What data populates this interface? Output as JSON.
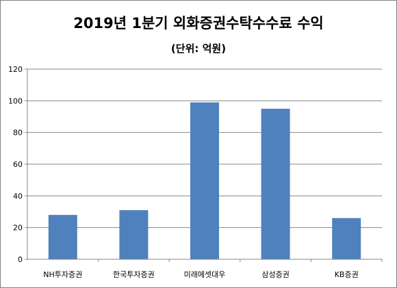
{
  "chart_data": {
    "type": "bar",
    "title": "2019년 1분기 외화증권수탁수수료 수익",
    "subtitle": "(단위: 억원)",
    "categories": [
      "NH투자증권",
      "한국투자증권",
      "미래에셋대우",
      "삼성증권",
      "KB증권"
    ],
    "series": [
      {
        "values": [
          28,
          31,
          99,
          95,
          26
        ]
      }
    ],
    "ylim": [
      0,
      120
    ],
    "yticks": [
      "0",
      "20",
      "40",
      "60",
      "80",
      "100",
      "120"
    ],
    "grid": true,
    "legend": "none",
    "bar_color": "#4F81BD"
  }
}
